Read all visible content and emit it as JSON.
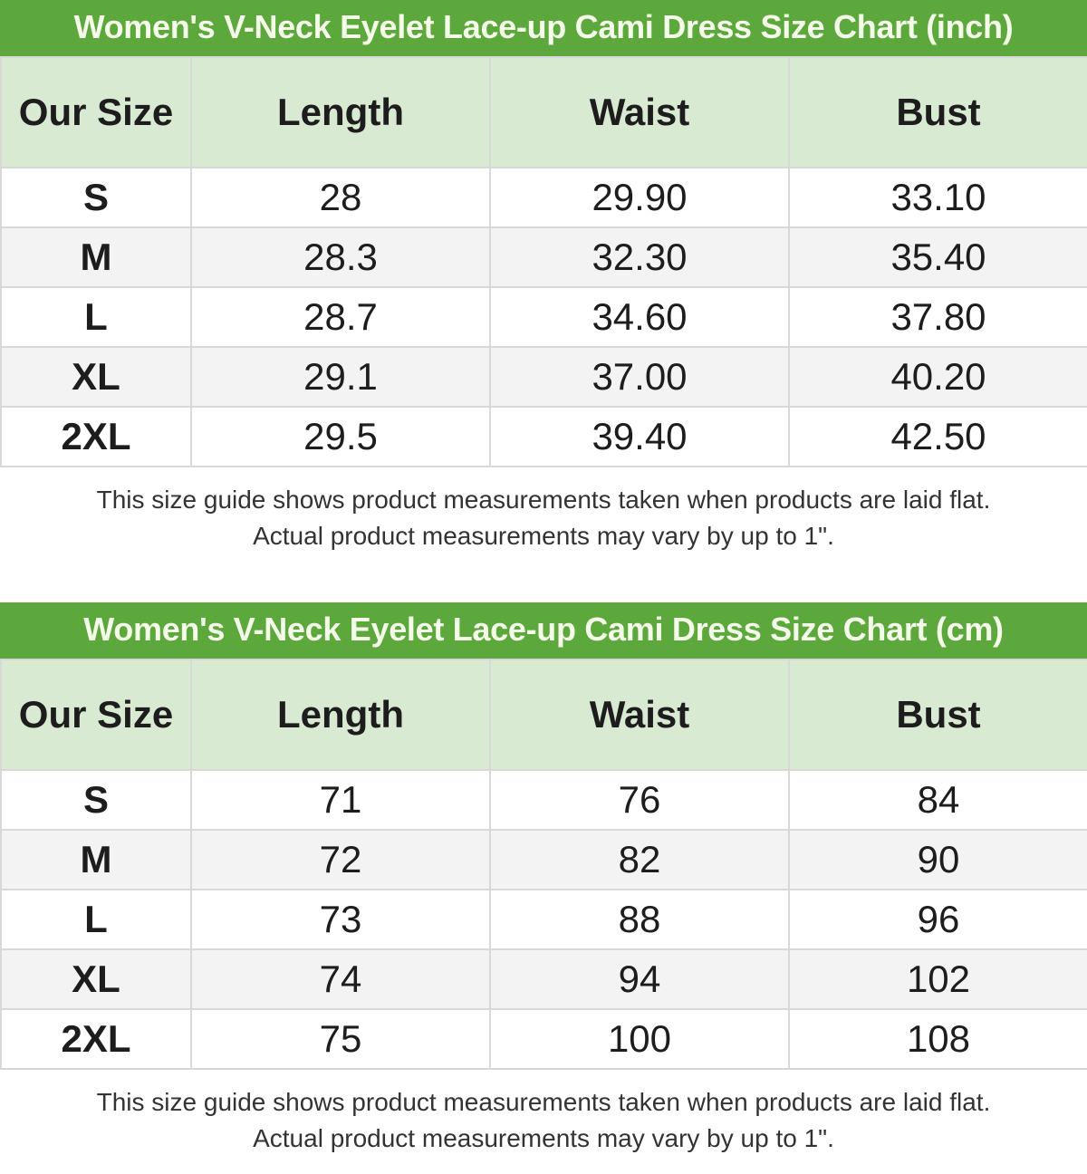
{
  "charts": [
    {
      "title": "Women's V-Neck Eyelet Lace-up Cami Dress Size Chart (inch)",
      "headers": [
        "Our Size",
        "Length",
        "Waist",
        "Bust"
      ],
      "rows": [
        [
          "S",
          "28",
          "29.90",
          "33.10"
        ],
        [
          "M",
          "28.3",
          "32.30",
          "35.40"
        ],
        [
          "L",
          "28.7",
          "34.60",
          "37.80"
        ],
        [
          "XL",
          "29.1",
          "37.00",
          "40.20"
        ],
        [
          "2XL",
          "29.5",
          "39.40",
          "42.50"
        ]
      ],
      "note": [
        "This size guide shows product measurements taken when products are laid flat.",
        "Actual product measurements may vary by up to 1\"."
      ]
    },
    {
      "title": "Women's V-Neck Eyelet Lace-up Cami Dress Size Chart (cm)",
      "headers": [
        "Our Size",
        "Length",
        "Waist",
        "Bust"
      ],
      "rows": [
        [
          "S",
          "71",
          "76",
          "84"
        ],
        [
          "M",
          "72",
          "82",
          "90"
        ],
        [
          "L",
          "73",
          "88",
          "96"
        ],
        [
          "XL",
          "74",
          "94",
          "102"
        ],
        [
          "2XL",
          "75",
          "100",
          "108"
        ]
      ],
      "note": [
        "This size guide shows product measurements taken when products are laid flat.",
        "Actual product measurements may vary by up to 1\"."
      ]
    }
  ],
  "colors": {
    "title_bg": "#5ca83d",
    "header_bg": "#d9ead3",
    "alt_row": "#f3f3f3"
  }
}
